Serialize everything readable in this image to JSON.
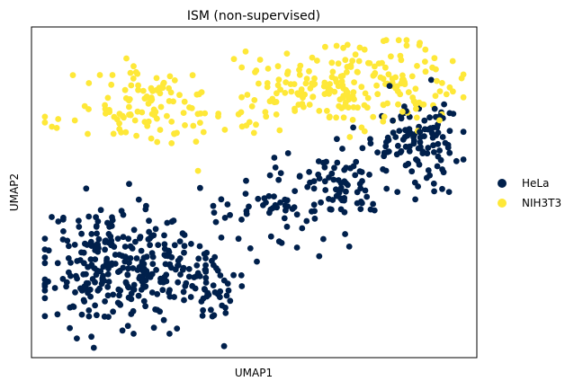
{
  "chart_data": {
    "type": "scatter",
    "title": "ISM (non-supervised)",
    "xlabel": "UMAP1",
    "ylabel": "UMAP2",
    "xlim": [
      0,
      100
    ],
    "ylim": [
      0,
      100
    ],
    "xticks": false,
    "yticks": false,
    "grid": false,
    "legend": "right",
    "series": [
      {
        "name": "HeLa",
        "color": "#00204c",
        "points": []
      },
      {
        "name": "NIH3T3",
        "color": "#fee838",
        "points": []
      }
    ],
    "clusters": [
      {
        "series": 0,
        "n": 300,
        "cx": 20,
        "cy": 28,
        "sx": 9,
        "sy": 9,
        "seed": 11
      },
      {
        "series": 0,
        "n": 60,
        "cx": 40,
        "cy": 22,
        "sx": 5,
        "sy": 6,
        "seed": 12
      },
      {
        "series": 0,
        "n": 60,
        "cx": 54,
        "cy": 45,
        "sx": 7,
        "sy": 6,
        "seed": 13
      },
      {
        "series": 0,
        "n": 70,
        "cx": 72,
        "cy": 53,
        "sx": 6,
        "sy": 6,
        "seed": 14
      },
      {
        "series": 0,
        "n": 110,
        "cx": 88,
        "cy": 66,
        "sx": 5,
        "sy": 7,
        "seed": 15
      },
      {
        "series": 1,
        "n": 110,
        "cx": 26,
        "cy": 75,
        "sx": 8,
        "sy": 6,
        "seed": 21
      },
      {
        "series": 1,
        "n": 110,
        "cx": 62,
        "cy": 82,
        "sx": 8,
        "sy": 5,
        "seed": 22
      },
      {
        "series": 1,
        "n": 110,
        "cx": 80,
        "cy": 82,
        "sx": 8,
        "sy": 6,
        "seed": 23
      },
      {
        "series": 1,
        "n": 12,
        "cx": 45,
        "cy": 70,
        "sx": 5,
        "sy": 3,
        "seed": 24
      }
    ]
  }
}
